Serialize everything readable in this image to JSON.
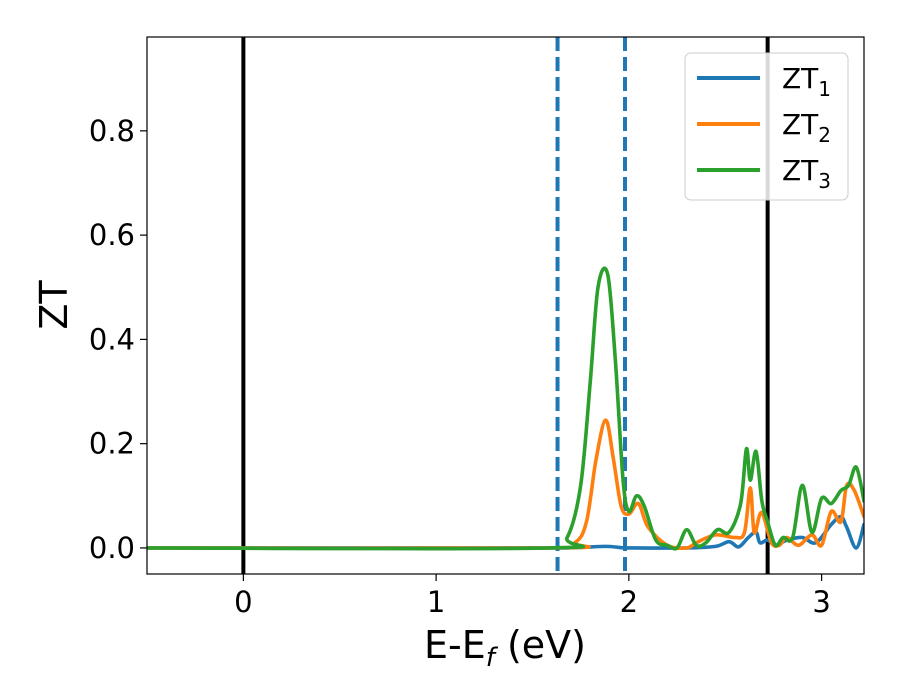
{
  "chart_data": {
    "type": "line",
    "xlabel": "E-E",
    "xlabel_sub": "f",
    "xlabel_unit": " (eV)",
    "ylabel": "ZT",
    "xlim": [
      -0.5,
      3.22
    ],
    "ylim": [
      -0.05,
      0.98
    ],
    "xticks": [
      0,
      1,
      2,
      3
    ],
    "xtick_labels": [
      "0",
      "1",
      "2",
      "3"
    ],
    "yticks": [
      0.0,
      0.2,
      0.4,
      0.6,
      0.8
    ],
    "ytick_labels": [
      "0.0",
      "0.2",
      "0.4",
      "0.6",
      "0.8"
    ],
    "grid": false,
    "legend_position": "top-right",
    "vlines_solid": [
      0.0,
      2.72
    ],
    "vlines_dashed": [
      1.63,
      1.98
    ],
    "series": [
      {
        "name": "ZT",
        "name_sub": "1",
        "color": "#1f77b4",
        "x": [
          -0.5,
          1.5,
          1.63,
          1.75,
          1.88,
          1.95,
          2.0,
          2.3,
          2.45,
          2.52,
          2.57,
          2.62,
          2.66,
          2.68,
          2.72,
          2.76,
          2.82,
          2.9,
          2.97,
          3.05,
          3.1,
          3.13,
          3.18,
          3.22
        ],
        "y": [
          0.0,
          0.0,
          0.0,
          0.001,
          0.003,
          0.001,
          0.0,
          0.0,
          0.003,
          0.012,
          0.002,
          0.02,
          0.03,
          0.01,
          0.015,
          0.005,
          0.015,
          0.02,
          0.01,
          0.045,
          0.06,
          0.04,
          0.0,
          0.045
        ]
      },
      {
        "name": "ZT",
        "name_sub": "2",
        "color": "#ff7f0e",
        "x": [
          -0.5,
          1.6,
          1.72,
          1.78,
          1.83,
          1.88,
          1.92,
          1.96,
          2.0,
          2.05,
          2.1,
          2.2,
          2.3,
          2.35,
          2.45,
          2.55,
          2.6,
          2.63,
          2.65,
          2.68,
          2.7,
          2.74,
          2.78,
          2.82,
          2.88,
          2.95,
          3.0,
          3.05,
          3.1,
          3.13,
          3.17,
          3.22
        ],
        "y": [
          0.0,
          0.0,
          0.01,
          0.05,
          0.17,
          0.245,
          0.17,
          0.08,
          0.065,
          0.085,
          0.04,
          0.005,
          0.0,
          0.01,
          0.025,
          0.02,
          0.03,
          0.115,
          0.03,
          0.065,
          0.06,
          0.01,
          0.005,
          0.02,
          0.005,
          0.025,
          0.005,
          0.07,
          0.05,
          0.12,
          0.11,
          0.06
        ]
      },
      {
        "name": "ZT",
        "name_sub": "3",
        "color": "#2ca02c",
        "x": [
          -0.5,
          1.58,
          1.68,
          1.75,
          1.8,
          1.84,
          1.89,
          1.93,
          1.97,
          2.0,
          2.04,
          2.08,
          2.14,
          2.2,
          2.25,
          2.3,
          2.35,
          2.4,
          2.46,
          2.52,
          2.58,
          2.61,
          2.63,
          2.66,
          2.69,
          2.72,
          2.76,
          2.8,
          2.85,
          2.9,
          2.95,
          3.0,
          3.05,
          3.1,
          3.14,
          3.18,
          3.22
        ],
        "y": [
          0.0,
          0.0,
          0.02,
          0.12,
          0.32,
          0.5,
          0.525,
          0.36,
          0.13,
          0.07,
          0.1,
          0.08,
          0.015,
          0.005,
          0.0,
          0.035,
          0.005,
          0.01,
          0.035,
          0.03,
          0.085,
          0.19,
          0.13,
          0.185,
          0.09,
          0.05,
          0.005,
          0.02,
          0.02,
          0.12,
          0.03,
          0.095,
          0.085,
          0.11,
          0.12,
          0.155,
          0.09
        ]
      }
    ]
  }
}
